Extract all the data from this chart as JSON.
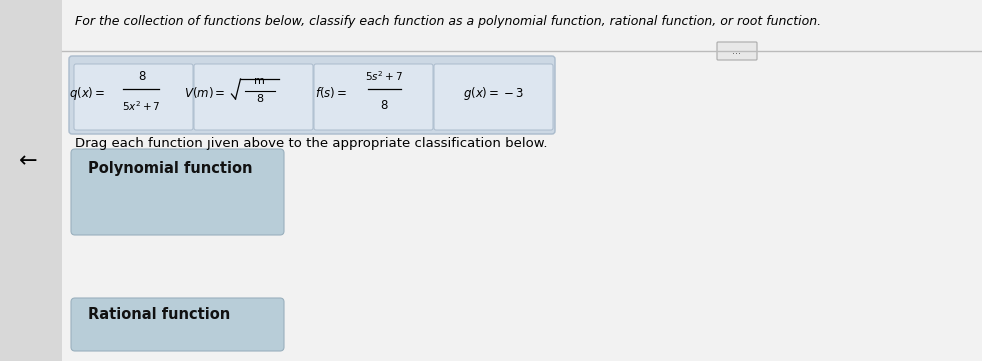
{
  "title": "For the collection of functions below, classify each function as a polynomial function, rational function, or root function.",
  "instruction": "Drag each function ȷiven above to the appropriate classification below.",
  "back_arrow": "←",
  "categories": [
    "Polynomial function",
    "Rational function"
  ],
  "page_bg": "#e8e8e8",
  "content_bg": "#f0f0f0",
  "card_outer_bg": "#d0d8e0",
  "card_inner_bg": "#e4eaf0",
  "box_bg": "#b8cdd8",
  "box_border": "#8aaabb",
  "title_fontsize": 9.0,
  "func_fontsize": 9.5,
  "cat_fontsize": 10.5,
  "instr_fontsize": 9.5,
  "dots_label": "..."
}
